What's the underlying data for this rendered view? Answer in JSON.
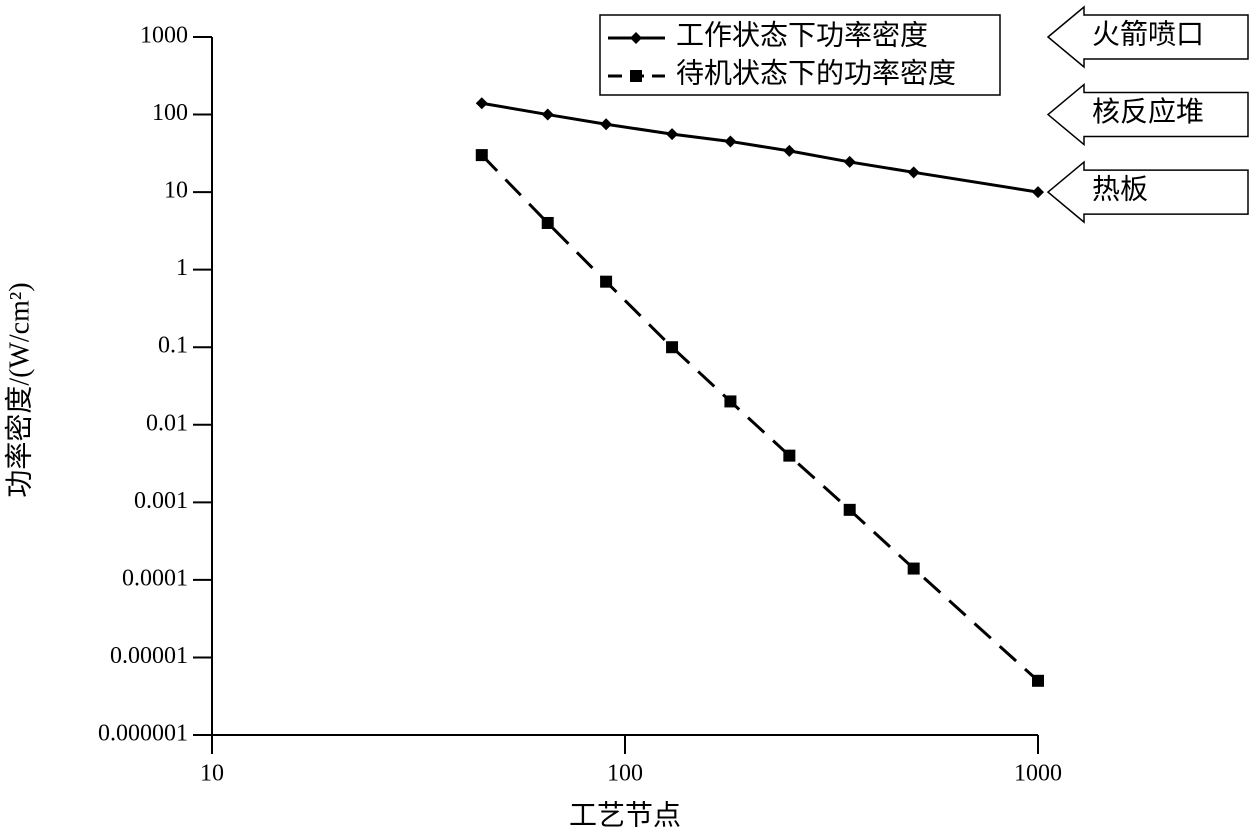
{
  "chart_data": {
    "type": "line",
    "x_label": "工艺节点",
    "y_label": "功率密度/(W/cm²)",
    "x_log": true,
    "y_log": true,
    "xlim": [
      10,
      1000
    ],
    "xticks": [
      10,
      100,
      1000
    ],
    "ylim": [
      1e-06,
      1000
    ],
    "yticks": [
      1000,
      100,
      10,
      1,
      0.1,
      0.01,
      0.001,
      0.0001,
      1e-05,
      1e-06
    ],
    "legend": "top-right",
    "series": [
      {
        "name": "工作状态下功率密度",
        "color": "#000000",
        "dash": "solid",
        "marker": "diamond",
        "x": [
          45,
          65,
          90,
          130,
          180,
          250,
          350,
          500,
          1000
        ],
        "values": [
          140,
          100,
          75,
          56,
          45,
          34,
          24.5,
          18,
          10
        ]
      },
      {
        "name": "待机状态下的功率密度",
        "color": "#000000",
        "dash": "dashed",
        "marker": "square",
        "x": [
          45,
          65,
          90,
          130,
          180,
          250,
          350,
          500,
          1000
        ],
        "values": [
          30,
          4,
          0.7,
          0.1,
          0.02,
          0.004,
          0.0008,
          0.00014,
          5e-06
        ]
      }
    ],
    "annotations": [
      {
        "text": "火箭喷口",
        "y": 1000
      },
      {
        "text": "核反应堆",
        "y": 100
      },
      {
        "text": "热板",
        "y": 10
      }
    ]
  }
}
